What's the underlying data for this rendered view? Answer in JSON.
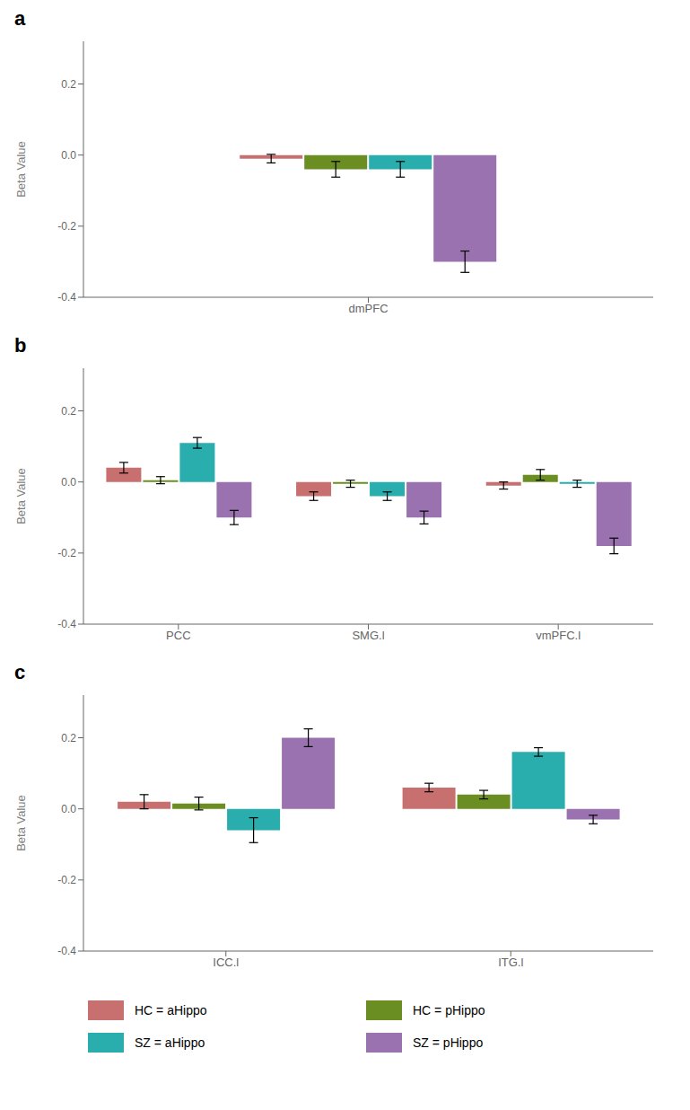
{
  "chart_data": [
    {
      "type": "bar",
      "title": "a",
      "ylabel": "Beta Value",
      "categories": [
        "dmPFC"
      ],
      "series": [
        {
          "name": "HC = aHippo",
          "color": "#C87070",
          "values": [
            -0.01
          ],
          "error": [
            0.012
          ]
        },
        {
          "name": "HC = pHippo",
          "color": "#6B8E23",
          "values": [
            -0.04
          ],
          "error": [
            0.022
          ]
        },
        {
          "name": "SZ = aHippo",
          "color": "#2AADAD",
          "values": [
            -0.04
          ],
          "error": [
            0.022
          ]
        },
        {
          "name": "SZ = pHippo",
          "color": "#9B72B0",
          "values": [
            -0.3
          ],
          "error": [
            0.03
          ]
        }
      ],
      "ylim": [
        -0.4,
        0.32
      ],
      "yticks": [
        -0.4,
        -0.2,
        {
          "value": 0.0,
          "label": "0.0"
        },
        0.2
      ],
      "grid": false
    },
    {
      "type": "bar",
      "title": "b",
      "ylabel": "Beta Value",
      "categories": [
        "PCC",
        "SMG.l",
        "vmPFC.l"
      ],
      "series": [
        {
          "name": "HC = aHippo",
          "color": "#C87070",
          "values": [
            0.04,
            -0.04,
            -0.01
          ],
          "error": [
            0.015,
            0.012,
            0.01
          ]
        },
        {
          "name": "HC = pHippo",
          "color": "#6B8E23",
          "values": [
            0.005,
            -0.005,
            0.02
          ],
          "error": [
            0.01,
            0.01,
            0.015
          ]
        },
        {
          "name": "SZ = aHippo",
          "color": "#2AADAD",
          "values": [
            0.11,
            -0.04,
            -0.005
          ],
          "error": [
            0.015,
            0.012,
            0.01
          ]
        },
        {
          "name": "SZ = pHippo",
          "color": "#9B72B0",
          "values": [
            -0.1,
            -0.1,
            -0.18
          ],
          "error": [
            0.02,
            0.018,
            0.022
          ]
        }
      ],
      "ylim": [
        -0.4,
        0.32
      ],
      "yticks": [
        -0.4,
        -0.2,
        {
          "value": 0.0,
          "label": "0.0"
        },
        0.2
      ],
      "grid": false
    },
    {
      "type": "bar",
      "title": "c",
      "ylabel": "Beta Value",
      "categories": [
        "ICC.l",
        "ITG.l"
      ],
      "series": [
        {
          "name": "HC = aHippo",
          "color": "#C87070",
          "values": [
            0.02,
            0.06
          ],
          "error": [
            0.02,
            0.012
          ]
        },
        {
          "name": "HC = pHippo",
          "color": "#6B8E23",
          "values": [
            0.015,
            0.04
          ],
          "error": [
            0.018,
            0.012
          ]
        },
        {
          "name": "SZ = aHippo",
          "color": "#2AADAD",
          "values": [
            -0.06,
            0.16
          ],
          "error": [
            0.035,
            0.012
          ]
        },
        {
          "name": "SZ = pHippo",
          "color": "#9B72B0",
          "values": [
            0.2,
            -0.03
          ],
          "error": [
            0.025,
            0.012
          ]
        }
      ],
      "ylim": [
        -0.4,
        0.32
      ],
      "yticks": [
        -0.4,
        -0.2,
        {
          "value": 0.0,
          "label": "0.0"
        },
        0.2
      ],
      "grid": false
    }
  ]
}
